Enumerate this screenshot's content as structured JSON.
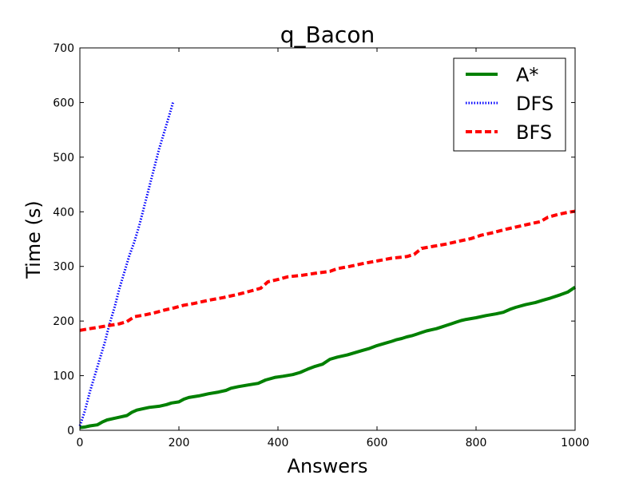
{
  "chart_data": {
    "type": "line",
    "title": "q_Bacon",
    "xlabel": "Answers",
    "ylabel": "Time (s)",
    "xlim": [
      0,
      1000
    ],
    "ylim": [
      0,
      700
    ],
    "xticks": [
      "0",
      "200",
      "400",
      "600",
      "800",
      "1000"
    ],
    "yticks": [
      "0",
      "100",
      "200",
      "300",
      "400",
      "500",
      "600",
      "700"
    ],
    "grid": false,
    "legend_position": "top-right",
    "series": [
      {
        "name": "A*",
        "color": "#008000",
        "style": "solid",
        "x": [
          0,
          10,
          20,
          35,
          45,
          55,
          70,
          80,
          95,
          105,
          115,
          125,
          140,
          160,
          175,
          185,
          200,
          210,
          220,
          240,
          260,
          280,
          295,
          305,
          320,
          340,
          360,
          375,
          395,
          410,
          430,
          445,
          460,
          475,
          490,
          505,
          520,
          540,
          555,
          570,
          585,
          600,
          615,
          630,
          640,
          650,
          660,
          670,
          680,
          690,
          700,
          710,
          720,
          730,
          740,
          750,
          760,
          770,
          780,
          800,
          820,
          840,
          855,
          870,
          880,
          900,
          920,
          935,
          950,
          970,
          985,
          1000
        ],
        "y": [
          5,
          6,
          8,
          10,
          15,
          19,
          22,
          24,
          27,
          33,
          37,
          39,
          42,
          44,
          47,
          50,
          52,
          57,
          60,
          63,
          67,
          70,
          73,
          77,
          80,
          83,
          86,
          92,
          97,
          99,
          102,
          106,
          112,
          117,
          121,
          130,
          134,
          138,
          142,
          146,
          150,
          155,
          159,
          163,
          166,
          168,
          171,
          173,
          176,
          179,
          182,
          184,
          186,
          189,
          192,
          195,
          198,
          201,
          203,
          206,
          210,
          213,
          216,
          222,
          225,
          230,
          234,
          238,
          242,
          248,
          253,
          262
        ]
      },
      {
        "name": "DFS",
        "color": "#0000ff",
        "style": "dotted",
        "x": [
          0,
          10,
          20,
          30,
          40,
          50,
          60,
          70,
          80,
          90,
          100,
          110,
          120,
          130,
          140,
          150,
          160,
          170,
          180,
          188
        ],
        "y": [
          8,
          35,
          70,
          100,
          130,
          160,
          195,
          225,
          260,
          290,
          320,
          345,
          375,
          410,
          445,
          480,
          515,
          545,
          575,
          600
        ]
      },
      {
        "name": "BFS",
        "color": "#ff0000",
        "style": "dashed",
        "x": [
          0,
          20,
          40,
          60,
          80,
          95,
          110,
          130,
          150,
          170,
          190,
          210,
          230,
          260,
          290,
          320,
          345,
          365,
          380,
          400,
          420,
          450,
          480,
          505,
          520,
          545,
          570,
          600,
          630,
          660,
          675,
          690,
          715,
          740,
          765,
          790,
          810,
          835,
          860,
          880,
          905,
          930,
          945,
          965,
          985,
          1000
        ],
        "y": [
          183,
          186,
          189,
          192,
          195,
          199,
          208,
          211,
          215,
          220,
          224,
          229,
          232,
          238,
          243,
          249,
          255,
          260,
          272,
          276,
          281,
          284,
          288,
          291,
          296,
          300,
          305,
          310,
          315,
          318,
          322,
          333,
          337,
          341,
          346,
          351,
          357,
          362,
          368,
          372,
          377,
          382,
          390,
          395,
          399,
          401
        ]
      }
    ]
  }
}
